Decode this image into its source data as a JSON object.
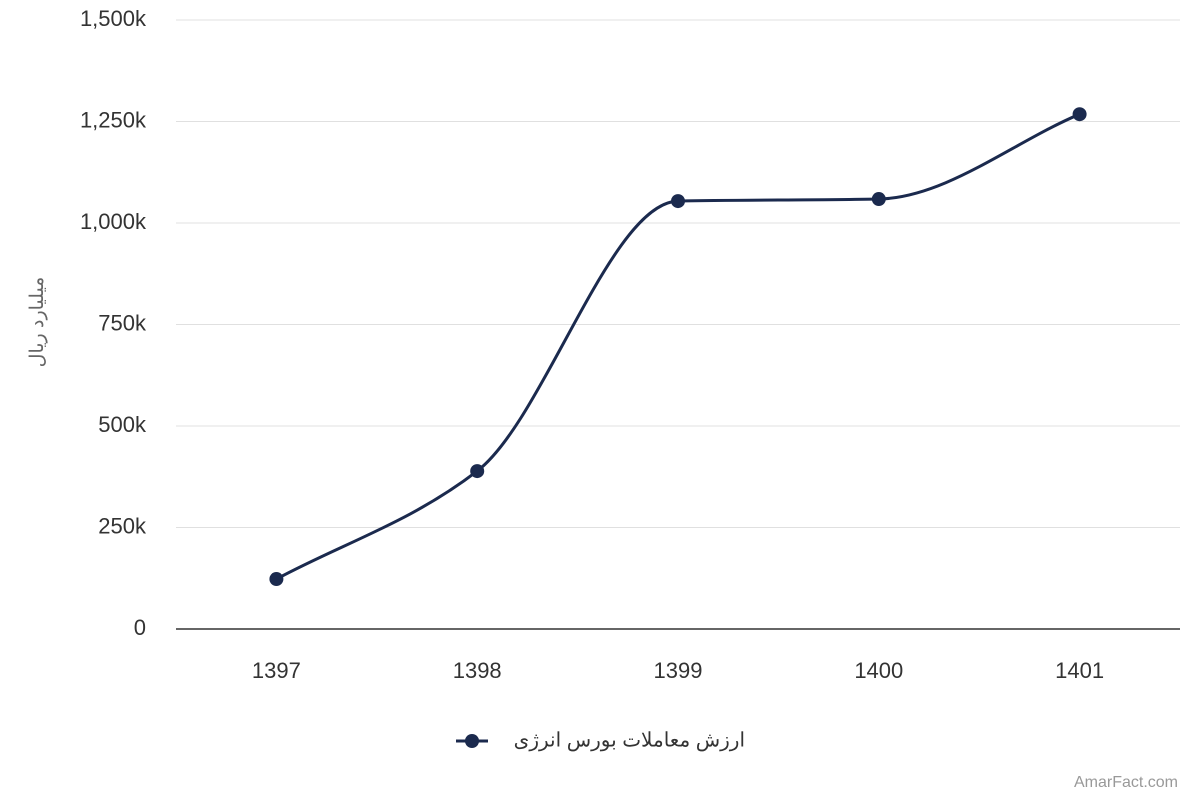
{
  "chart_data": {
    "type": "line",
    "y_label": "میلیارد ریال",
    "categories": [
      "1397",
      "1398",
      "1399",
      "1400",
      "1401"
    ],
    "series": [
      {
        "name": "ارزش معاملات بورس انرژی",
        "color": "#1b2a4e",
        "values": [
          123000,
          389000,
          1054000,
          1059000,
          1268000
        ]
      }
    ],
    "ylim": [
      0,
      1500000
    ],
    "yticks": [
      0,
      {
        "value": 250000,
        "label": "250k"
      },
      {
        "value": 500000,
        "label": "500k"
      },
      {
        "value": 750000,
        "label": "750k"
      },
      {
        "value": 1000000,
        "label": "1,000k"
      },
      {
        "value": 1250000,
        "label": "1,250k"
      },
      {
        "value": 1500000,
        "label": "1,500k"
      }
    ],
    "grid": true,
    "legend": "bottom",
    "smooth": true,
    "credit": "AmarFact.com"
  }
}
